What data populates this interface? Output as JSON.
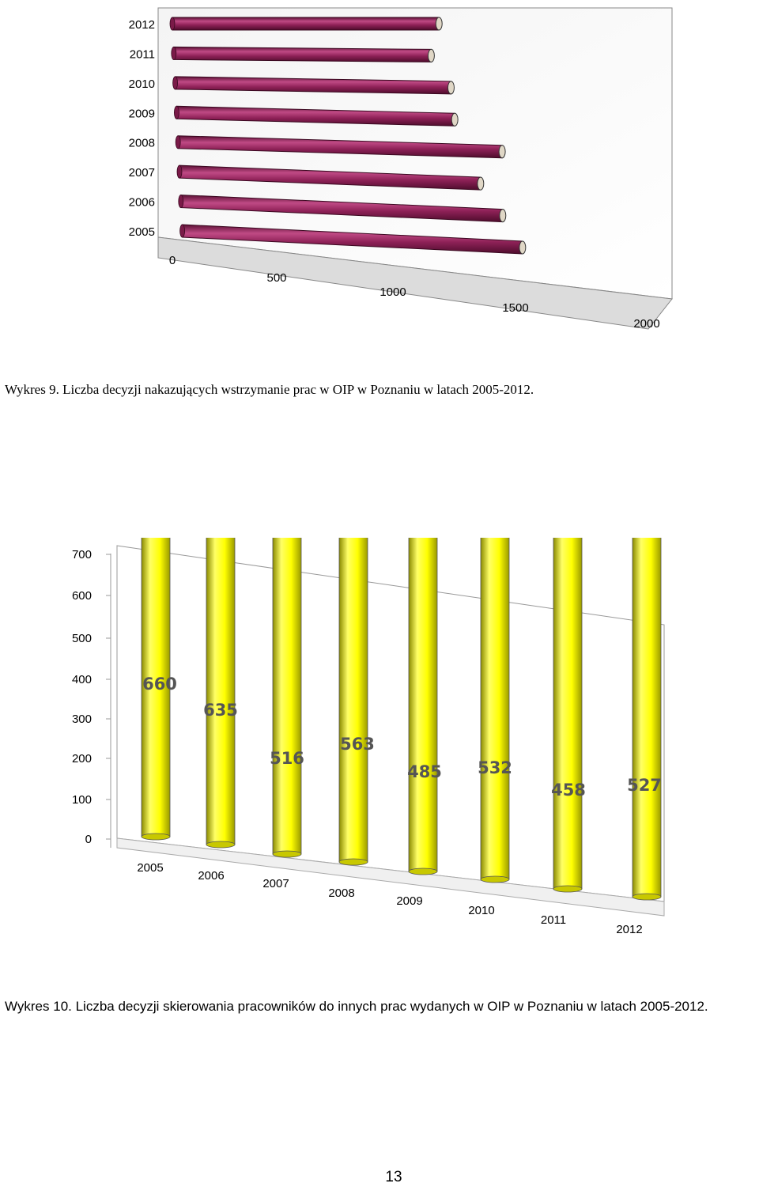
{
  "chart_data": [
    {
      "type": "bar",
      "orientation": "horizontal",
      "style": "3d-cylinder",
      "title": "",
      "categories": [
        "2005",
        "2006",
        "2007",
        "2008",
        "2009",
        "2010",
        "2011",
        "2012"
      ],
      "values": [
        1480,
        1400,
        1310,
        1410,
        1210,
        1200,
        1120,
        1160
      ],
      "xlim": [
        0,
        2000
      ],
      "x_ticks": [
        "0",
        "500",
        "1000",
        "1500",
        "2000"
      ],
      "grid": false,
      "legend": "none",
      "color": "#8e2157"
    },
    {
      "type": "bar",
      "orientation": "vertical",
      "style": "3d-cylinder",
      "title": "",
      "categories": [
        "2005",
        "2006",
        "2007",
        "2008",
        "2009",
        "2010",
        "2011",
        "2012"
      ],
      "values": [
        660,
        635,
        516,
        563,
        485,
        532,
        458,
        527
      ],
      "data_labels": [
        "660",
        "635",
        "516",
        "563",
        "485",
        "532",
        "458",
        "527"
      ],
      "ylim": [
        0,
        700
      ],
      "y_ticks": [
        "0",
        "100",
        "200",
        "300",
        "400",
        "500",
        "600",
        "700"
      ],
      "grid": false,
      "legend": "none",
      "color": "#ffff00"
    }
  ],
  "captions": {
    "chart1": "Wykres 9. Liczba decyzji nakazujących wstrzymanie prac w OIP w Poznaniu w latach 2005-2012.",
    "chart2": "Wykres 10. Liczba decyzji skierowania pracowników do innych prac wydanych w OIP w Poznaniu w latach 2005-2012."
  },
  "page_number": "13"
}
